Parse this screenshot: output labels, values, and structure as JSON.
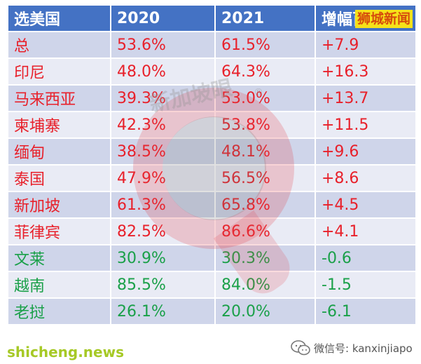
{
  "table": {
    "headers": [
      "选美国",
      "2020",
      "2021",
      "增幅百分点"
    ],
    "rows": [
      {
        "country": "总",
        "y2020": "53.6%",
        "y2021": "61.5%",
        "change": "+7.9",
        "trend": "up"
      },
      {
        "country": "印尼",
        "y2020": "48.0%",
        "y2021": "64.3%",
        "change": "+16.3",
        "trend": "up"
      },
      {
        "country": "马来西亚",
        "y2020": "39.3%",
        "y2021": "53.0%",
        "change": "+13.7",
        "trend": "up"
      },
      {
        "country": "柬埔寨",
        "y2020": "42.3%",
        "y2021": "53.8%",
        "change": "+11.5",
        "trend": "up"
      },
      {
        "country": "缅甸",
        "y2020": "38.5%",
        "y2021": "48.1%",
        "change": "+9.6",
        "trend": "up"
      },
      {
        "country": "泰国",
        "y2020": "47.9%",
        "y2021": "56.5%",
        "change": "+8.6",
        "trend": "up"
      },
      {
        "country": "新加坡",
        "y2020": "61.3%",
        "y2021": "65.8%",
        "change": "+4.5",
        "trend": "up"
      },
      {
        "country": "菲律宾",
        "y2020": "82.5%",
        "y2021": "86.6%",
        "change": "+4.1",
        "trend": "up"
      },
      {
        "country": "文莱",
        "y2020": "30.9%",
        "y2021": "30.3%",
        "change": "-0.6",
        "trend": "down"
      },
      {
        "country": "越南",
        "y2020": "85.5%",
        "y2021": "84.0%",
        "change": "-1.5",
        "trend": "down"
      },
      {
        "country": "老挝",
        "y2020": "26.1%",
        "y2021": "20.0%",
        "change": "-6.1",
        "trend": "down"
      }
    ]
  },
  "overlay_label": "狮城新闻",
  "watermark": {
    "text": "新加坡眼",
    "mark": "®"
  },
  "footer": {
    "site": "shicheng.news",
    "wechat_id": "微信号: kanxinjiapo"
  },
  "colors": {
    "header_bg": "#4472c4",
    "row_odd": "#cfd5ea",
    "row_even": "#e9ebf5",
    "increase": "#e8202a",
    "decrease": "#1aa049",
    "label_bg": "#f5e21a",
    "site_text": "#a6c926"
  }
}
